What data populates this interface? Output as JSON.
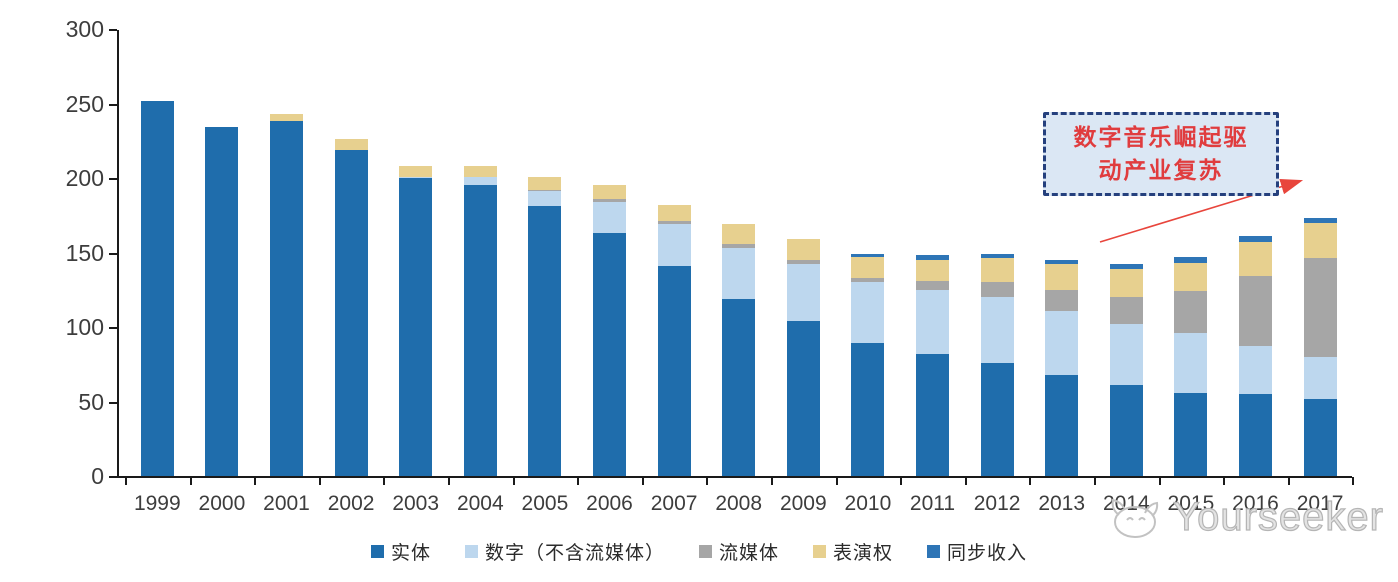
{
  "annotation": {
    "lines": [
      "数字音乐崛起驱",
      "动产业复苏"
    ],
    "text_color": "#e03c3e",
    "box_fill": "#dbe7f4",
    "box_border": "#25407d",
    "arrow_color": "#e8453c"
  },
  "watermark": {
    "brand": "Yourseeker",
    "logo": "cat-logo-icon",
    "color": "#bdbdbd"
  },
  "chart_data": {
    "type": "bar",
    "stacked": true,
    "title": "",
    "xlabel": "",
    "ylabel": "",
    "ylim": [
      0,
      300
    ],
    "yticks": [
      0,
      50,
      100,
      150,
      200,
      250,
      300
    ],
    "grid": false,
    "legend_position": "bottom",
    "categories": [
      "1999",
      "2000",
      "2001",
      "2002",
      "2003",
      "2004",
      "2005",
      "2006",
      "2007",
      "2008",
      "2009",
      "2010",
      "2011",
      "2012",
      "2013",
      "2014",
      "2015",
      "2016",
      "2017"
    ],
    "series": [
      {
        "name": "实体",
        "color": "#1f6dac",
        "values": [
          252,
          234,
          238,
          219,
          200,
          195,
          181,
          163,
          141,
          119,
          104,
          89,
          82,
          76,
          68,
          61,
          56,
          55,
          52
        ]
      },
      {
        "name": "数字（不含流媒体）",
        "color": "#bdd7ee",
        "values": [
          0,
          0,
          0,
          0,
          1,
          6,
          10,
          21,
          28,
          34,
          38,
          41,
          43,
          44,
          43,
          41,
          40,
          32,
          28
        ]
      },
      {
        "name": "流媒体",
        "color": "#a6a6a6",
        "values": [
          0,
          0,
          0,
          0,
          0,
          0,
          1,
          2,
          2,
          3,
          3,
          3,
          6,
          10,
          14,
          18,
          28,
          47,
          66
        ]
      },
      {
        "name": "表演权",
        "color": "#e7d08f",
        "values": [
          0,
          0,
          5,
          7,
          7,
          7,
          9,
          9,
          11,
          13,
          14,
          14,
          14,
          16,
          17,
          19,
          19,
          23,
          24
        ]
      },
      {
        "name": "同步收入",
        "color": "#2e75b6",
        "values": [
          0,
          0,
          0,
          0,
          0,
          0,
          0,
          0,
          0,
          0,
          0,
          2,
          3,
          3,
          3,
          3,
          4,
          4,
          3
        ]
      }
    ],
    "totals": [
      252,
      234,
      243,
      226,
      208,
      208,
      201,
      195,
      182,
      169,
      159,
      149,
      148,
      149,
      145,
      142,
      147,
      161,
      173
    ]
  }
}
